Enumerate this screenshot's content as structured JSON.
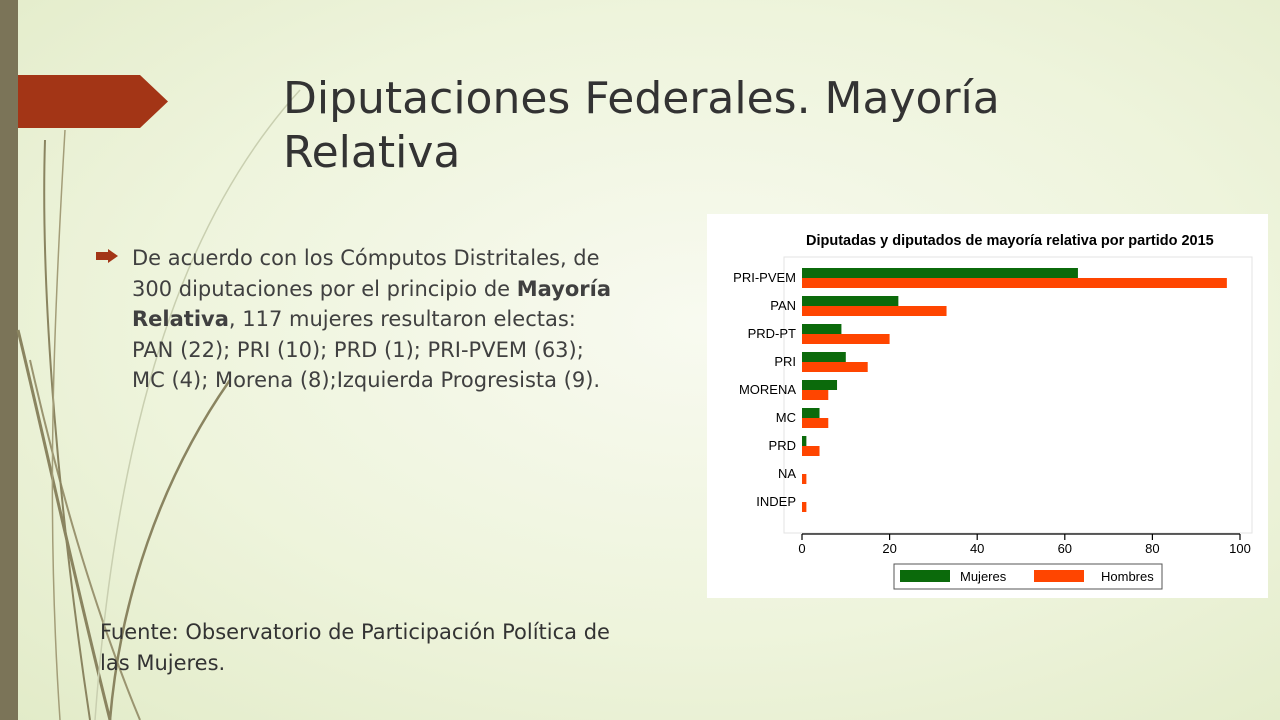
{
  "slide": {
    "title": "Diputaciones Federales. Mayoría Relativa",
    "bullet": {
      "before": "De acuerdo con los Cómputos Distritales, de 300 diputaciones por el principio de ",
      "bold": "Mayoría Relativa",
      "after": ", 117 mujeres resultaron electas: PAN (22); PRI (10); PRD (1); PRI-PVEM (63); MC (4); Morena (8);Izquierda Progresista (9)."
    },
    "source": "Fuente: Observatorio de Participación Política de las Mujeres.",
    "colors": {
      "accent": "#a33516",
      "strip": "#7b7458"
    }
  },
  "chart_data": {
    "type": "bar",
    "orientation": "horizontal",
    "title": "Diputadas y diputados de mayoría relativa por partido 2015",
    "categories": [
      "PRI-PVEM",
      "PAN",
      "PRD-PT",
      "PRI",
      "MORENA",
      "MC",
      "PRD",
      "NA",
      "INDEP"
    ],
    "series": [
      {
        "name": "Mujeres",
        "color": "#0b6a0b",
        "values": [
          63,
          22,
          9,
          10,
          8,
          4,
          1,
          0,
          0
        ]
      },
      {
        "name": "Hombres",
        "color": "#ff4500",
        "values": [
          97,
          33,
          20,
          15,
          6,
          6,
          4,
          1,
          1
        ]
      }
    ],
    "xlim": [
      0,
      100
    ],
    "xticks": [
      0,
      20,
      40,
      60,
      80,
      100
    ],
    "legend_position": "bottom",
    "grid": false
  }
}
